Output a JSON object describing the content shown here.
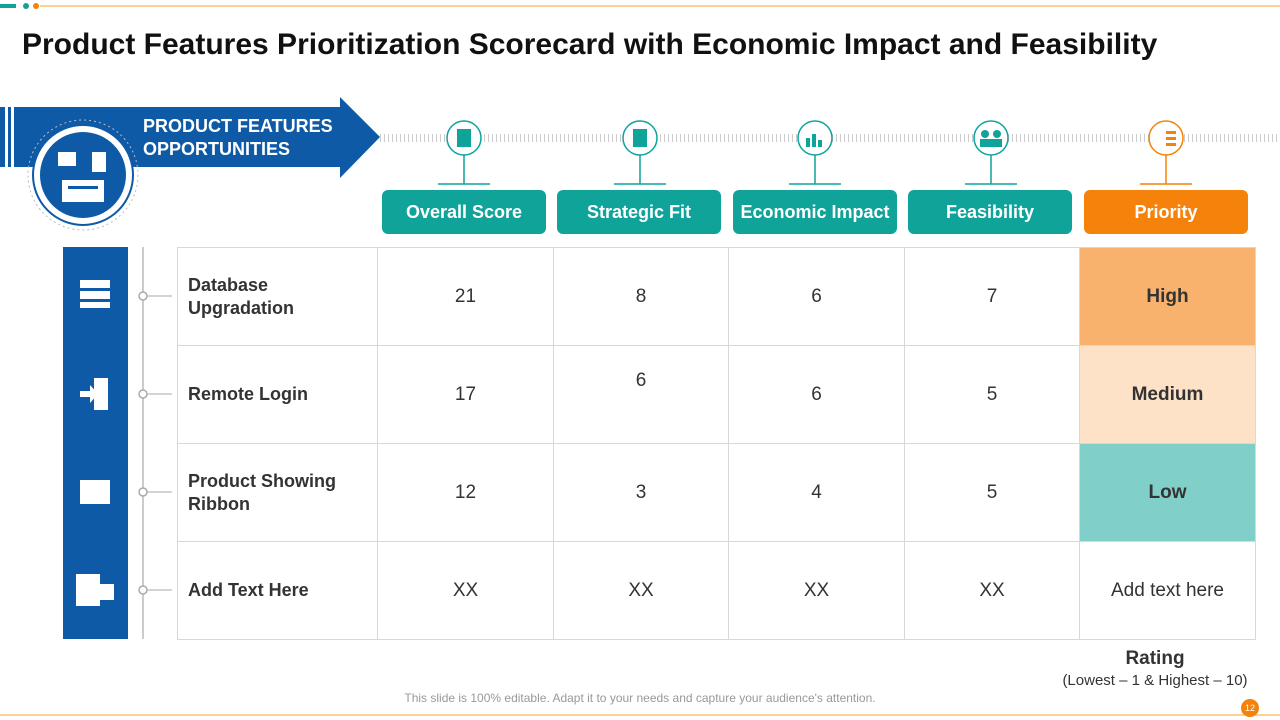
{
  "header": {
    "title": "Product Features Prioritization Scorecard with Economic Impact and Feasibility"
  },
  "banner": {
    "label": "PRODUCT FEATURES OPPORTUNITIES"
  },
  "table": {
    "columns": [
      "Overall Score",
      "Strategic Fit",
      "Economic Impact",
      "Feasibility",
      "Priority"
    ],
    "rows": [
      [
        "Database Upgradation",
        "21",
        "8",
        "6",
        "7",
        "High"
      ],
      [
        "Remote Login",
        "17",
        "6",
        "6",
        "5",
        "Medium"
      ],
      [
        "Product Showing Ribbon",
        "12",
        "3",
        "4",
        "5",
        "Low"
      ],
      [
        "Add Text Here",
        "XX",
        "XX",
        "XX",
        "XX",
        "Add text here"
      ]
    ]
  },
  "rating": {
    "title": "Rating",
    "note": "(Lowest – 1 & Highest – 10)"
  },
  "footer": {
    "note": "This slide is 100% editable. Adapt it to your needs and capture your audience's attention.",
    "page": "12"
  }
}
